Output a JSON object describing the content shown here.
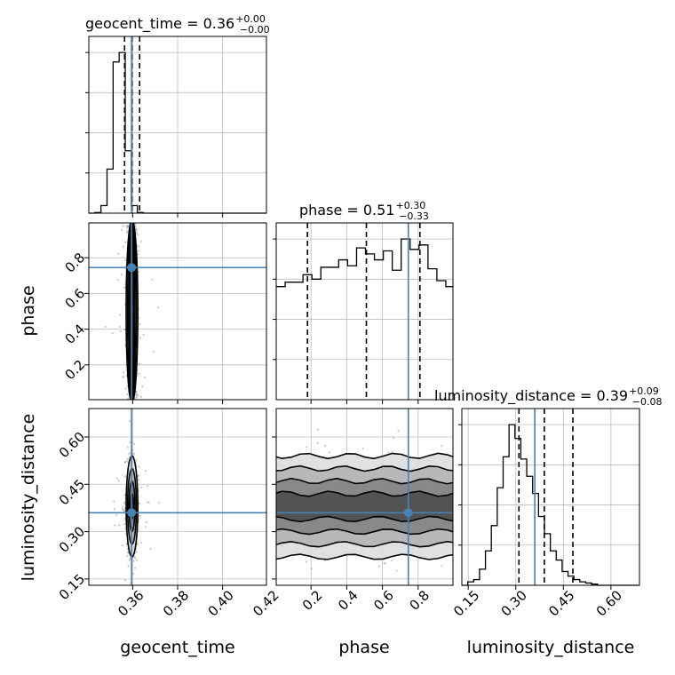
{
  "chart_data": {
    "type": "corner",
    "truth_color": "#4682b4",
    "parameters": [
      "geocent_time",
      "phase",
      "luminosity_distance"
    ],
    "titles": [
      {
        "param": "geocent_time",
        "text": "geocent_time = 0.36",
        "plus": "+0.00",
        "minus": "−0.00"
      },
      {
        "param": "phase",
        "text": "phase = 0.51",
        "plus": "+0.30",
        "minus": "−0.33"
      },
      {
        "param": "luminosity_distance",
        "text": "luminosity_distance = 0.39",
        "plus": "+0.09",
        "minus": "−0.08"
      }
    ],
    "axis_labels": {
      "x": [
        "geocent_time",
        "phase",
        "luminosity_distance"
      ],
      "y": [
        "phase",
        "luminosity_distance"
      ]
    },
    "ranges": {
      "geocent_time": [
        0.3405,
        0.4195
      ],
      "phase": [
        0.005,
        0.995
      ],
      "luminosity_distance": [
        0.13,
        0.69
      ]
    },
    "ticks": {
      "geocent_time": {
        "values": [
          0.36,
          0.38,
          0.4,
          0.42
        ],
        "labels": [
          "0.36",
          "0.38",
          "0.40",
          "0.42"
        ]
      },
      "phase": {
        "values": [
          0.2,
          0.4,
          0.6,
          0.8
        ],
        "labels": [
          "0.2",
          "0.4",
          "0.6",
          "0.8"
        ]
      },
      "luminosity_distance": {
        "values": [
          0.15,
          0.3,
          0.45,
          0.6
        ],
        "labels": [
          "0.15",
          "0.30",
          "0.45",
          "0.60"
        ]
      }
    },
    "truths": {
      "geocent_time": 0.3595,
      "phase": 0.745,
      "luminosity_distance": 0.36
    },
    "quantiles": {
      "geocent_time": [
        0.3564,
        0.3597,
        0.3631
      ],
      "phase": [
        0.18,
        0.51,
        0.81
      ],
      "luminosity_distance": [
        0.31,
        0.39,
        0.48
      ]
    },
    "histograms": {
      "geocent_time": {
        "edges_start": 0.3405,
        "bin_width": 0.0027,
        "counts": [
          0,
          1,
          12,
          70,
          240,
          255,
          99,
          12,
          1,
          0,
          0,
          0,
          0,
          0,
          0,
          0,
          0,
          0,
          0,
          0,
          0,
          0,
          0,
          0,
          0,
          0,
          0,
          0,
          0,
          0
        ]
      },
      "phase": {
        "edges_start": 0.005,
        "bin_width": 0.05,
        "counts": [
          76,
          79,
          79,
          84,
          81,
          89,
          89,
          94,
          90,
          102,
          98,
          94,
          100,
          87,
          108,
          101,
          104,
          88,
          80,
          76
        ]
      },
      "luminosity_distance": {
        "edges_start": 0.13,
        "bin_width": 0.0186,
        "counts": [
          0,
          3,
          5,
          14,
          30,
          52,
          85,
          112,
          140,
          128,
          110,
          95,
          80,
          60,
          45,
          30,
          22,
          12,
          8,
          5,
          3,
          2,
          1,
          0,
          0,
          0,
          0,
          0,
          0,
          0
        ]
      }
    },
    "joint": {
      "geocent_time-phase": {
        "center": [
          0.3597,
          0.5
        ],
        "spread": [
          0.0013,
          0.0
        ]
      },
      "geocent_time-luminosity_distance": {
        "center": [
          0.3597,
          0.38
        ],
        "spread": [
          0.0013,
          0.08
        ]
      },
      "phase-luminosity_distance": {
        "center": [
          0.5,
          0.38
        ],
        "spread": [
          0.0,
          0.08
        ]
      }
    },
    "grid": true
  }
}
